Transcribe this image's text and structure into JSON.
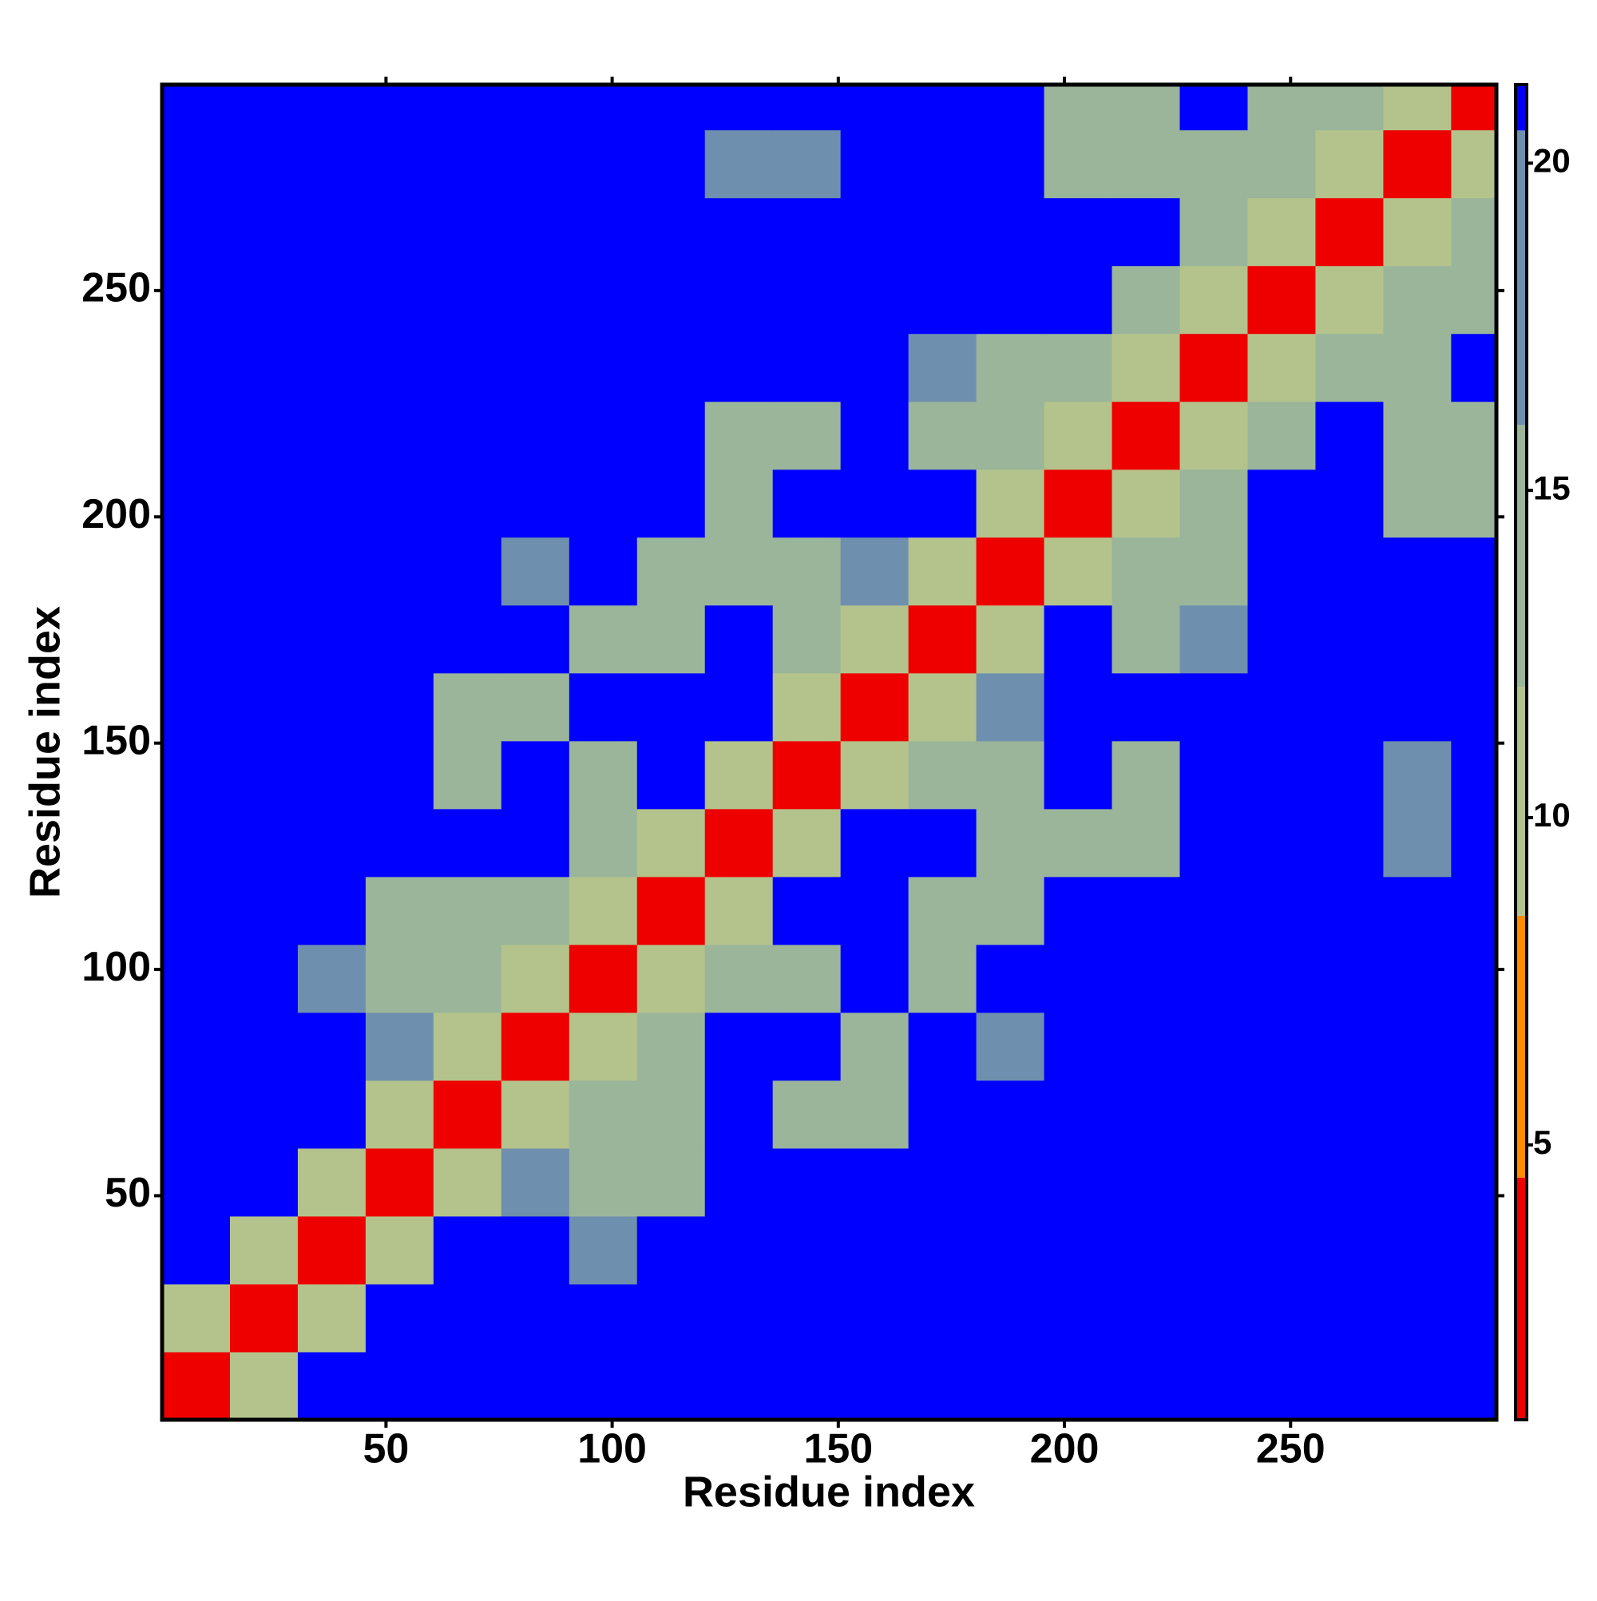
{
  "chart_data": {
    "type": "heatmap",
    "x_label": "Residue index",
    "y_label": "Residue index",
    "xlim": [
      0.5,
      295.5
    ],
    "ylim": [
      0.5,
      295.5
    ],
    "xticks": [
      50,
      100,
      150,
      200,
      250
    ],
    "yticks": [
      50,
      100,
      150,
      200,
      250
    ],
    "bins": [
      0.5,
      15.5,
      30.5,
      45.5,
      60.5,
      75.5,
      90.5,
      105.5,
      120.5,
      135.5,
      150.5,
      165.5,
      180.5,
      195.5,
      210.5,
      225.5,
      240.5,
      255.5,
      270.5,
      285.5,
      295.5
    ],
    "matrix": [
      [
        2,
        11,
        21,
        21,
        21,
        21,
        21,
        21,
        21,
        21,
        21,
        21,
        21,
        21,
        21,
        21,
        21,
        21,
        21,
        21
      ],
      [
        11,
        2,
        11,
        21,
        21,
        21,
        21,
        21,
        21,
        21,
        21,
        21,
        21,
        21,
        21,
        21,
        21,
        21,
        21,
        21
      ],
      [
        21,
        11,
        2,
        11,
        21,
        21,
        18,
        21,
        21,
        21,
        21,
        21,
        21,
        21,
        21,
        21,
        21,
        21,
        21,
        21
      ],
      [
        21,
        21,
        11,
        2,
        11,
        16,
        12,
        15,
        21,
        21,
        21,
        21,
        21,
        21,
        21,
        21,
        21,
        21,
        21,
        21
      ],
      [
        21,
        21,
        21,
        11,
        2,
        11,
        12,
        13,
        21,
        13,
        13,
        21,
        21,
        21,
        21,
        21,
        21,
        21,
        21,
        21
      ],
      [
        21,
        21,
        21,
        16,
        11,
        2,
        11,
        12,
        21,
        21,
        14,
        21,
        18,
        21,
        21,
        21,
        21,
        21,
        21,
        21
      ],
      [
        21,
        21,
        18,
        12,
        12,
        11,
        2,
        11,
        15,
        14,
        21,
        12,
        21,
        21,
        21,
        21,
        21,
        21,
        21,
        21
      ],
      [
        21,
        21,
        21,
        15,
        13,
        12,
        11,
        2,
        11,
        21,
        21,
        13,
        12,
        21,
        21,
        21,
        21,
        21,
        21,
        21
      ],
      [
        21,
        21,
        21,
        21,
        21,
        21,
        15,
        11,
        2,
        11,
        21,
        21,
        14,
        12,
        15,
        21,
        21,
        21,
        18,
        21
      ],
      [
        21,
        21,
        21,
        21,
        13,
        21,
        14,
        21,
        11,
        2,
        11,
        12,
        13,
        21,
        12,
        21,
        21,
        21,
        18,
        21
      ],
      [
        21,
        21,
        21,
        21,
        13,
        14,
        21,
        21,
        21,
        11,
        2,
        11,
        16,
        21,
        21,
        21,
        21,
        21,
        21,
        21
      ],
      [
        21,
        21,
        21,
        21,
        21,
        21,
        12,
        13,
        21,
        12,
        11,
        2,
        11,
        21,
        13,
        17,
        21,
        21,
        21,
        21
      ],
      [
        21,
        21,
        21,
        21,
        21,
        18,
        21,
        12,
        14,
        13,
        16,
        11,
        2,
        11,
        15,
        12,
        21,
        21,
        21,
        21
      ],
      [
        21,
        21,
        21,
        21,
        21,
        21,
        21,
        21,
        12,
        21,
        21,
        21,
        11,
        2,
        11,
        12,
        21,
        21,
        13,
        15
      ],
      [
        21,
        21,
        21,
        21,
        21,
        21,
        21,
        21,
        15,
        12,
        21,
        13,
        15,
        11,
        2,
        11,
        15,
        21,
        13,
        14
      ],
      [
        21,
        21,
        21,
        21,
        21,
        21,
        21,
        21,
        21,
        21,
        21,
        17,
        12,
        12,
        11,
        2,
        11,
        14,
        12,
        21
      ],
      [
        21,
        21,
        21,
        21,
        21,
        21,
        21,
        21,
        21,
        21,
        21,
        21,
        21,
        21,
        15,
        11,
        2,
        11,
        13,
        12
      ],
      [
        21,
        21,
        21,
        21,
        21,
        21,
        21,
        21,
        21,
        21,
        21,
        21,
        21,
        21,
        21,
        14,
        11,
        2,
        11,
        13
      ],
      [
        21,
        21,
        21,
        21,
        21,
        21,
        21,
        21,
        18,
        18,
        21,
        21,
        21,
        13,
        13,
        12,
        13,
        11,
        2,
        11
      ],
      [
        21,
        21,
        21,
        21,
        21,
        21,
        21,
        21,
        21,
        21,
        21,
        21,
        21,
        15,
        14,
        21,
        12,
        13,
        11,
        2
      ]
    ],
    "colorscale": [
      {
        "value": 0.8,
        "color": "#ee0000"
      },
      {
        "value": 4.5,
        "color": "#ff8c00"
      },
      {
        "value": 8.5,
        "color": "#b4c38c"
      },
      {
        "value": 12,
        "color": "#9ab59a"
      },
      {
        "value": 16,
        "color": "#6f8fae"
      },
      {
        "value": 20.5,
        "color": "#0000ff"
      }
    ],
    "clim": [
      0.8,
      21.2
    ],
    "cticks": [
      5,
      10,
      15,
      20
    ]
  }
}
